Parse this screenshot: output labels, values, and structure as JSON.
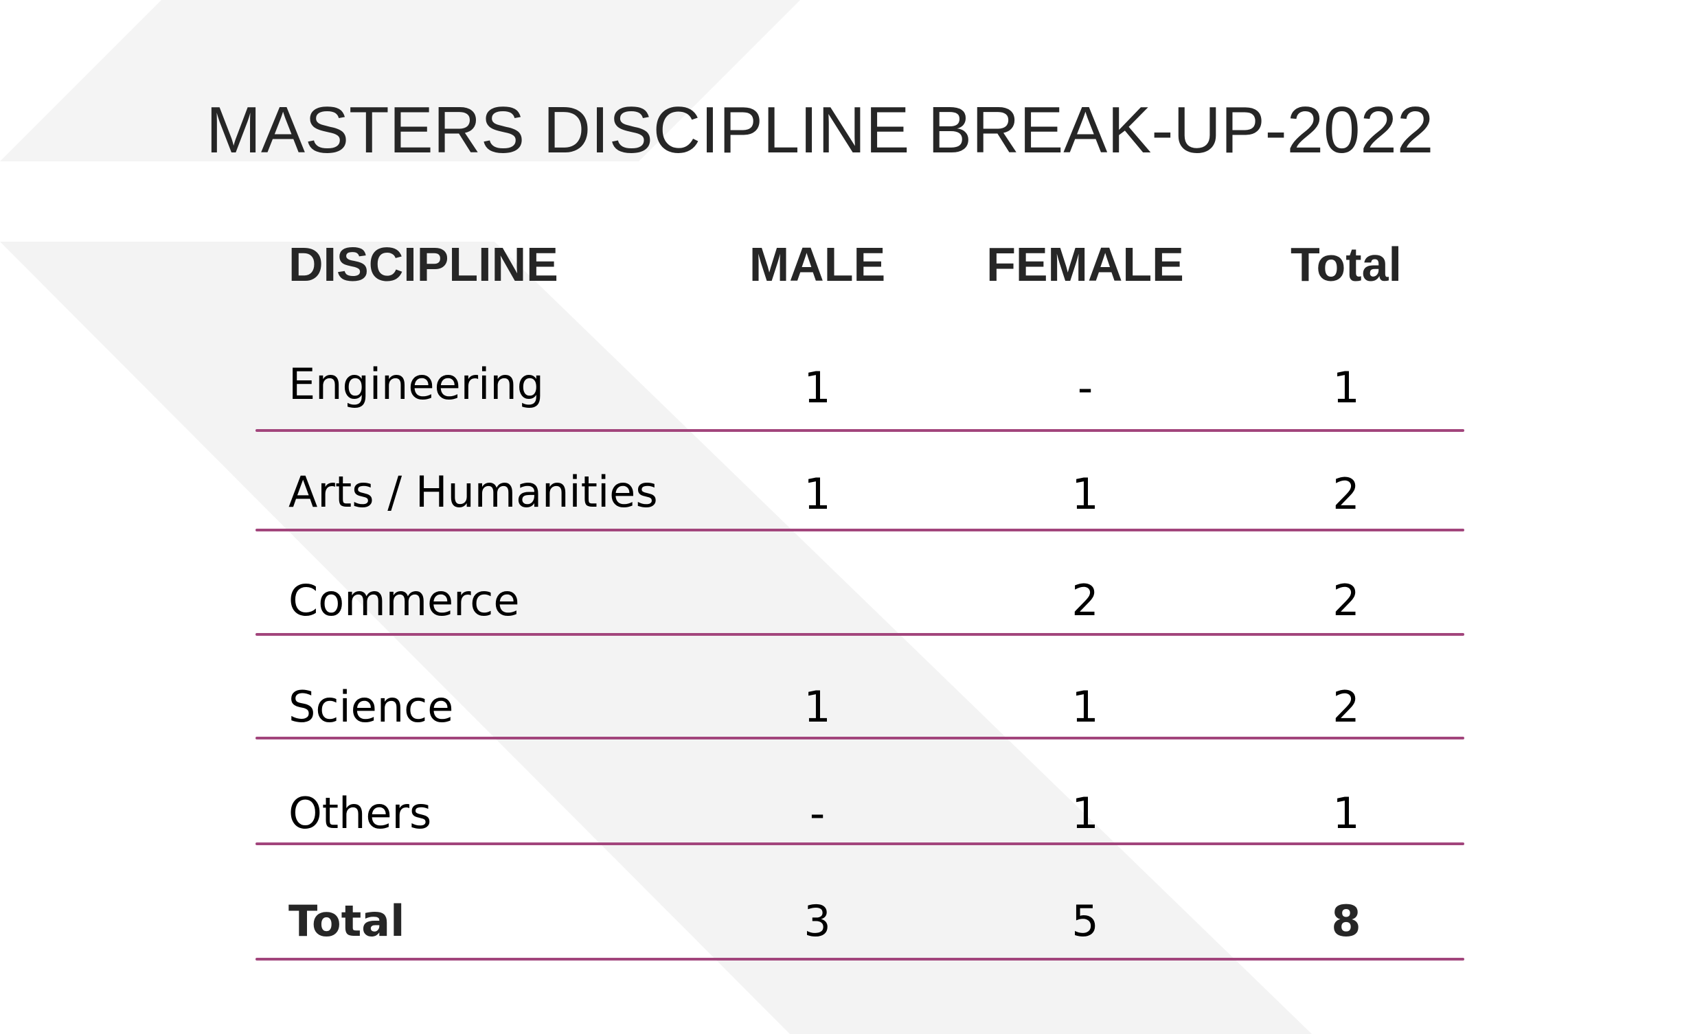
{
  "title": "MASTERS DISCIPLINE BREAK-UP-2022",
  "colors": {
    "text": "#262626",
    "accent_rule": "#a2457c",
    "background_shape": "#f3f3f3"
  },
  "table": {
    "headers": {
      "discipline": "DISCIPLINE",
      "male": "MALE",
      "female": "FEMALE",
      "total": "Total"
    },
    "rows": [
      {
        "discipline": "Engineering",
        "male": "1",
        "female": "-",
        "total": "1"
      },
      {
        "discipline": "Arts / Humanities",
        "male": "1",
        "female": "1",
        "total": "2"
      },
      {
        "discipline": "Commerce",
        "male": "",
        "female": "2",
        "total": "2"
      },
      {
        "discipline": "Science",
        "male": "1",
        "female": "1",
        "total": "2"
      },
      {
        "discipline": "Others",
        "male": "-",
        "female": "1",
        "total": "1"
      }
    ],
    "totals": {
      "discipline": "Total",
      "male": "3",
      "female": "5",
      "total": "8"
    }
  }
}
